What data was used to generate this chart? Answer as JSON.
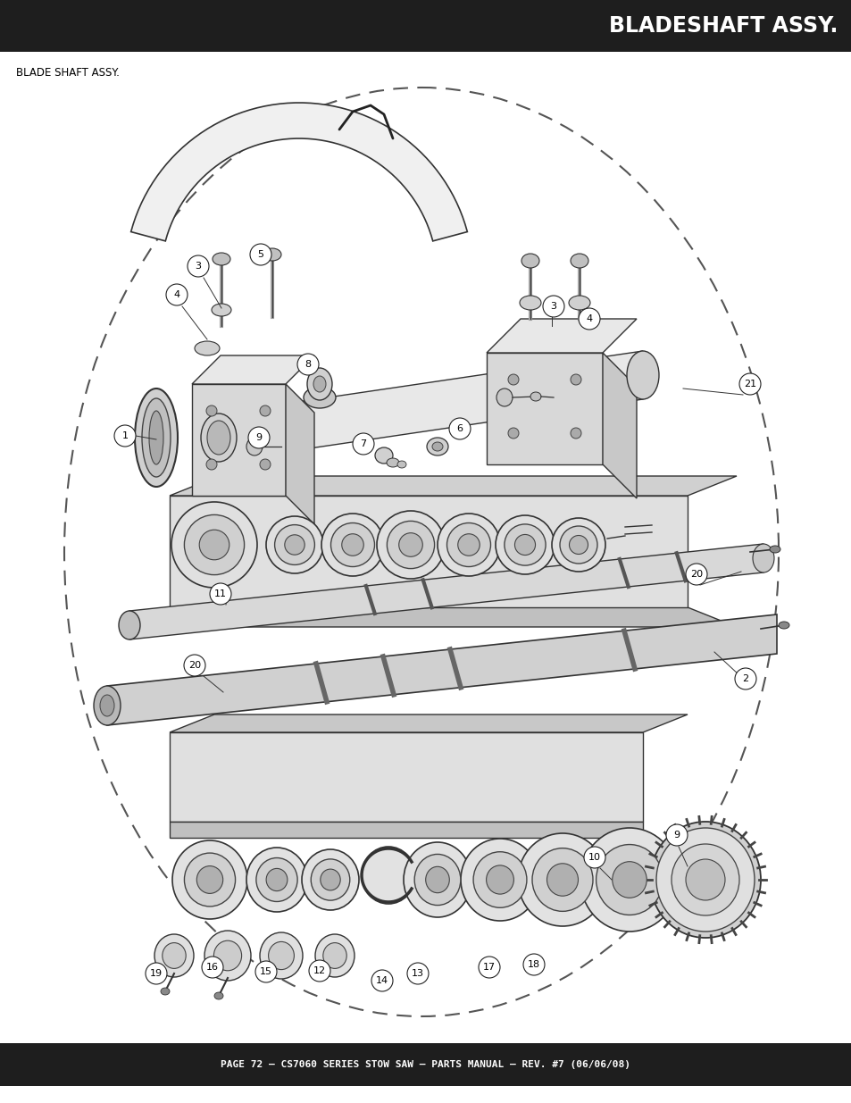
{
  "title_bar_text": "BLADESHAFT ASSY.",
  "title_bar_bg": "#1e1e1e",
  "title_bar_text_color": "#ffffff",
  "subtitle_text": "BLADE SHAFT ASSY.",
  "footer_text": "PAGE 72 — CS7060 SERIES STOW SAW — PARTS MANUAL — REV. #7 (06/06/08)",
  "footer_bg": "#1e1e1e",
  "footer_text_color": "#ffffff",
  "bg_color": "#ffffff",
  "fig_w": 9.54,
  "fig_h": 12.35,
  "dpi": 100
}
